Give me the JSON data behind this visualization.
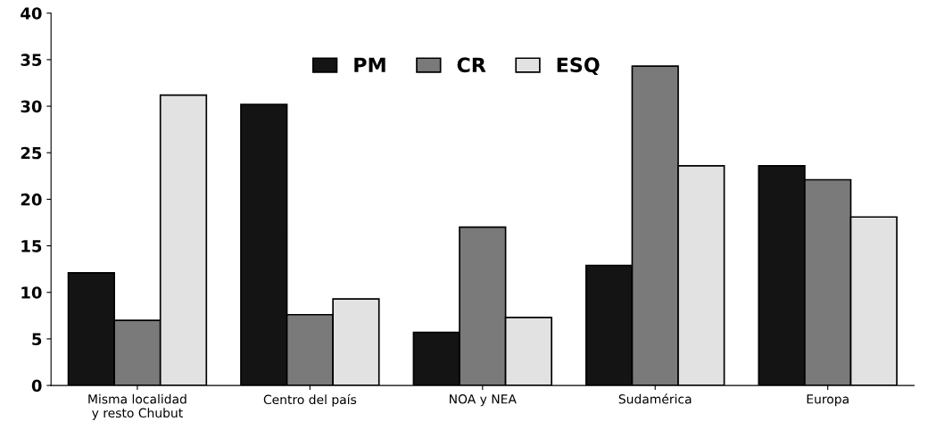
{
  "chart_data": {
    "type": "bar",
    "categories": [
      "Misma localidad\ny resto Chubut",
      "Centro del país",
      "NOA y NEA",
      "Sudamérica",
      "Europa"
    ],
    "series": [
      {
        "name": "PM",
        "color": "#141414",
        "values": [
          12.1,
          30.2,
          5.7,
          12.9,
          23.6
        ]
      },
      {
        "name": "CR",
        "color": "#7a7a7a",
        "values": [
          7.0,
          7.6,
          17.0,
          34.3,
          22.1
        ]
      },
      {
        "name": "ESQ",
        "color": "#e2e2e2",
        "values": [
          31.2,
          9.3,
          7.3,
          23.6,
          18.1
        ]
      }
    ],
    "ylim": [
      0,
      40
    ],
    "yticks": [
      0,
      5,
      10,
      15,
      20,
      25,
      30,
      35,
      40
    ],
    "grid": false,
    "legend": "top"
  }
}
